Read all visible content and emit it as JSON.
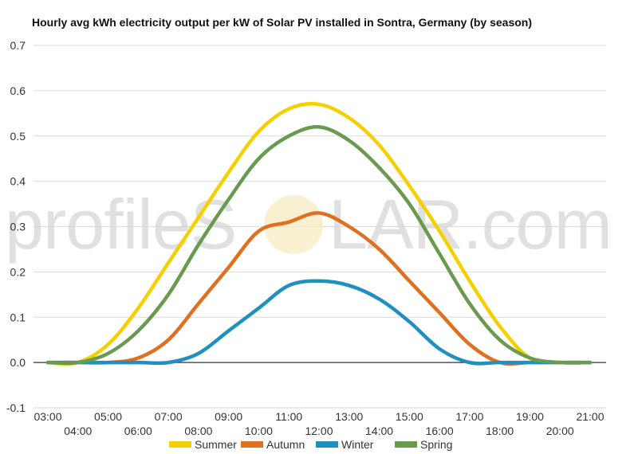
{
  "watermark": {
    "left_text": "profileS",
    "right_text": "LAR.com"
  },
  "chart_data": {
    "type": "line",
    "title": "Hourly avg kWh electricity output per kW of Solar PV installed in Sontra, Germany (by season)",
    "xlabel": "",
    "ylabel": "",
    "ylim": [
      -0.1,
      0.7
    ],
    "yticks": [
      -0.1,
      0.0,
      0.1,
      0.2,
      0.3,
      0.4,
      0.5,
      0.6,
      0.7
    ],
    "ytick_labels": [
      "-0.1",
      "0.0",
      "0.1",
      "0.2",
      "0.3",
      "0.4",
      "0.5",
      "0.6",
      "0.7"
    ],
    "x": [
      "03:00",
      "04:00",
      "05:00",
      "06:00",
      "07:00",
      "08:00",
      "09:00",
      "10:00",
      "11:00",
      "12:00",
      "13:00",
      "14:00",
      "15:00",
      "16:00",
      "17:00",
      "18:00",
      "19:00",
      "20:00",
      "21:00"
    ],
    "grid": true,
    "legend_position": "bottom",
    "series": [
      {
        "name": "Summer",
        "color": "#f5d000",
        "values": [
          0.0,
          0.0,
          0.04,
          0.12,
          0.22,
          0.32,
          0.42,
          0.51,
          0.56,
          0.57,
          0.54,
          0.48,
          0.39,
          0.29,
          0.18,
          0.08,
          0.01,
          0.0,
          0.0
        ]
      },
      {
        "name": "Autumn",
        "color": "#e07020",
        "values": [
          0.0,
          0.0,
          0.0,
          0.01,
          0.05,
          0.13,
          0.21,
          0.29,
          0.31,
          0.33,
          0.3,
          0.25,
          0.18,
          0.11,
          0.04,
          0.0,
          0.0,
          0.0,
          0.0
        ]
      },
      {
        "name": "Winter",
        "color": "#2090c0",
        "values": [
          0.0,
          0.0,
          0.0,
          0.0,
          0.0,
          0.02,
          0.07,
          0.12,
          0.17,
          0.18,
          0.17,
          0.14,
          0.09,
          0.03,
          0.0,
          0.0,
          0.0,
          0.0,
          0.0
        ]
      },
      {
        "name": "Spring",
        "color": "#6a9a50",
        "values": [
          0.0,
          0.0,
          0.02,
          0.07,
          0.15,
          0.26,
          0.36,
          0.45,
          0.5,
          0.52,
          0.49,
          0.43,
          0.35,
          0.24,
          0.13,
          0.05,
          0.01,
          0.0,
          0.0
        ]
      }
    ]
  }
}
